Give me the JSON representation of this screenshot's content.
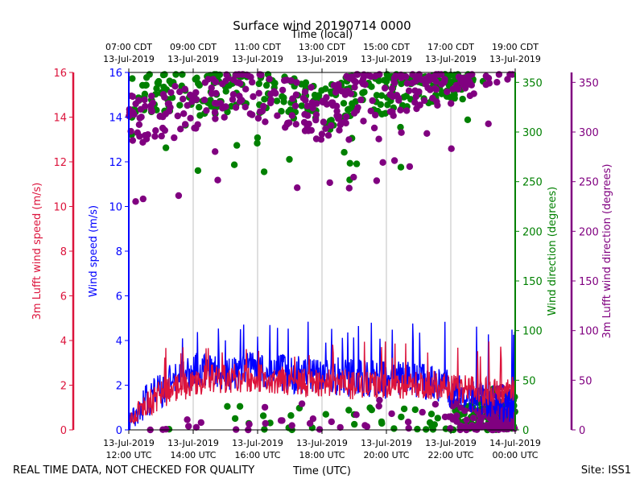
{
  "chart_data": {
    "type": "scatter",
    "title": "Surface wind 20190714 0000",
    "top_axis_title": "Time (local)",
    "xlabel": "Time (UTC)",
    "footer_left": "REAL TIME DATA, NOT CHECKED FOR QUALITY",
    "footer_right": "Site: ISS1",
    "x_range_hours_utc": [
      12,
      24
    ],
    "bottom_ticks": [
      {
        "hour": 12,
        "line1": "13-Jul-2019",
        "line2": "12:00 UTC"
      },
      {
        "hour": 14,
        "line1": "13-Jul-2019",
        "line2": "14:00 UTC"
      },
      {
        "hour": 16,
        "line1": "13-Jul-2019",
        "line2": "16:00 UTC"
      },
      {
        "hour": 18,
        "line1": "13-Jul-2019",
        "line2": "18:00 UTC"
      },
      {
        "hour": 20,
        "line1": "13-Jul-2019",
        "line2": "20:00 UTC"
      },
      {
        "hour": 22,
        "line1": "13-Jul-2019",
        "line2": "22:00 UTC"
      },
      {
        "hour": 24,
        "line1": "14-Jul-2019",
        "line2": "00:00 UTC"
      }
    ],
    "top_ticks": [
      {
        "hour": 12,
        "line1": "07:00 CDT",
        "line2": "13-Jul-2019"
      },
      {
        "hour": 14,
        "line1": "09:00 CDT",
        "line2": "13-Jul-2019"
      },
      {
        "hour": 16,
        "line1": "11:00 CDT",
        "line2": "13-Jul-2019"
      },
      {
        "hour": 18,
        "line1": "13:00 CDT",
        "line2": "13-Jul-2019"
      },
      {
        "hour": 20,
        "line1": "15:00 CDT",
        "line2": "13-Jul-2019"
      },
      {
        "hour": 22,
        "line1": "17:00 CDT",
        "line2": "13-Jul-2019"
      },
      {
        "hour": 24,
        "line1": "19:00 CDT",
        "line2": "13-Jul-2019"
      }
    ],
    "axes": [
      {
        "id": "lufft_speed",
        "label": "3m Lufft wind speed (m/s)",
        "color": "#dc143c",
        "range": [
          0,
          16
        ],
        "ticks": [
          0,
          2,
          4,
          6,
          8,
          10,
          12,
          14,
          16
        ]
      },
      {
        "id": "speed",
        "label": "Wind speed (m/s)",
        "color": "#0000ff",
        "range": [
          0,
          16
        ],
        "ticks": [
          0,
          2,
          4,
          6,
          8,
          10,
          12,
          14,
          16
        ]
      },
      {
        "id": "direction",
        "label": "Wind direction (degrees)",
        "color": "#008000",
        "range": [
          0,
          360
        ],
        "ticks": [
          0,
          50,
          100,
          150,
          200,
          250,
          300,
          350
        ]
      },
      {
        "id": "lufft_direction",
        "label": "3m Lufft wind direction (degrees)",
        "color": "#800080",
        "range": [
          0,
          360
        ],
        "ticks": [
          0,
          50,
          100,
          150,
          200,
          250,
          300,
          350
        ]
      }
    ],
    "series": [
      {
        "name": "Wind speed",
        "axis": "speed",
        "style": "line",
        "color": "#0000ff",
        "x": [
          12.0,
          12.5,
          13.0,
          13.5,
          14.0,
          14.5,
          15.0,
          15.5,
          16.0,
          16.5,
          17.0,
          17.5,
          18.0,
          18.5,
          19.0,
          19.5,
          20.0,
          20.5,
          21.0,
          21.5,
          22.0,
          22.5,
          23.0,
          23.5,
          24.0
        ],
        "values": [
          0.3,
          1.2,
          1.8,
          2.3,
          2.6,
          2.7,
          2.6,
          2.6,
          2.7,
          2.6,
          2.5,
          2.4,
          2.3,
          2.4,
          2.3,
          2.3,
          2.2,
          2.3,
          2.2,
          2.1,
          1.8,
          1.5,
          1.3,
          1.2,
          1.1
        ],
        "peak_value": 4.9
      },
      {
        "name": "3m Lufft wind speed",
        "axis": "lufft_speed",
        "style": "line",
        "color": "#dc143c",
        "x": [
          12.0,
          12.5,
          13.0,
          13.5,
          14.0,
          14.5,
          15.0,
          15.5,
          16.0,
          16.5,
          17.0,
          17.5,
          18.0,
          18.5,
          19.0,
          19.5,
          20.0,
          20.5,
          21.0,
          21.5,
          22.0,
          22.5,
          23.0,
          23.5,
          24.0
        ],
        "values": [
          0.4,
          1.1,
          1.6,
          1.9,
          2.1,
          2.3,
          2.3,
          2.3,
          2.3,
          2.2,
          2.2,
          2.1,
          2.1,
          2.1,
          2.0,
          2.0,
          2.0,
          2.0,
          2.0,
          2.0,
          1.9,
          1.8,
          1.7,
          1.7,
          1.8
        ],
        "peak_value": 4.0
      },
      {
        "name": "Wind direction",
        "axis": "direction",
        "style": "scatter",
        "color": "#008000",
        "x": [
          12.0,
          12.5,
          13.0,
          13.5,
          14.0,
          14.5,
          15.0,
          15.5,
          16.0,
          16.5,
          17.0,
          17.5,
          18.0,
          18.5,
          19.0,
          19.5,
          20.0,
          20.5,
          21.0,
          21.5,
          22.0,
          22.5,
          23.0,
          23.5,
          24.0
        ],
        "values": [
          330,
          340,
          340,
          345,
          335,
          340,
          340,
          345,
          340,
          335,
          335,
          330,
          320,
          330,
          340,
          335,
          340,
          345,
          350,
          350,
          355,
          355,
          20,
          20,
          30
        ],
        "secondary_cluster": {
          "hours": [
            12,
            24
          ],
          "range_deg": [
            0,
            25
          ]
        }
      },
      {
        "name": "3m Lufft wind direction",
        "axis": "lufft_direction",
        "style": "scatter",
        "color": "#800080",
        "x": [
          12.0,
          12.5,
          13.0,
          13.5,
          14.0,
          14.5,
          15.0,
          15.5,
          16.0,
          16.5,
          17.0,
          17.5,
          18.0,
          18.5,
          19.0,
          19.5,
          20.0,
          20.5,
          21.0,
          21.5,
          22.0,
          22.5,
          23.0,
          23.5,
          24.0
        ],
        "values": [
          320,
          310,
          315,
          320,
          330,
          335,
          340,
          345,
          340,
          335,
          330,
          325,
          315,
          325,
          340,
          330,
          335,
          345,
          350,
          350,
          355,
          355,
          15,
          15,
          25
        ],
        "secondary_cluster": {
          "hours": [
            12,
            24
          ],
          "range_deg": [
            0,
            30
          ]
        }
      }
    ]
  }
}
